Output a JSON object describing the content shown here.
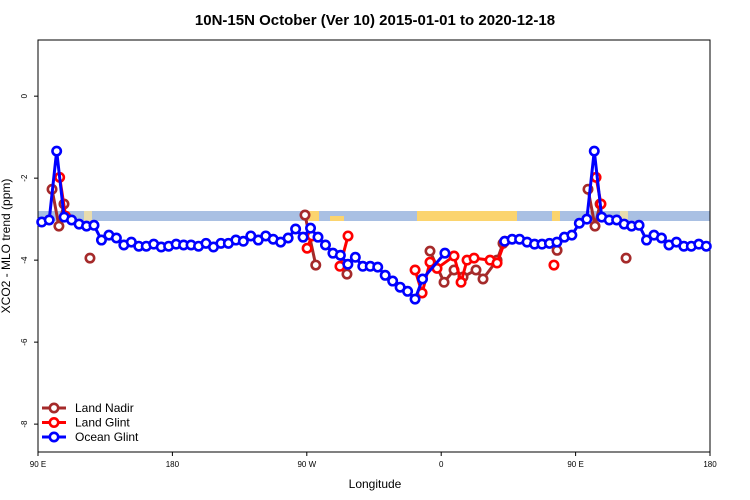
{
  "chart_data": {
    "type": "line",
    "title": "10N-15N October (Ver 10)   2015-01-01 to 2020-12-18",
    "x_label": "Longitude",
    "y_label": "XCO2 - MLO trend (ppm)",
    "xlim": [
      90,
      540
    ],
    "ylim": [
      -8.68,
      1.37
    ],
    "xticks": [
      {
        "value": 90,
        "label": "90 E"
      },
      180,
      {
        "value": 270,
        "label": "90 W"
      },
      {
        "value": 360,
        "label": "0"
      },
      {
        "value": 450,
        "label": "90 E"
      },
      180.0
    ],
    "yticks": [
      0,
      -2,
      -4,
      -6,
      -8
    ],
    "legend": "bottomleft",
    "series": [
      {
        "name": "Land Nadir",
        "color": "#a52a2a",
        "x": [
          99.4,
          104,
          107.4,
          116,
          124.8,
          200,
          268.8,
          276,
          286,
          296.9,
          320,
          352.5,
          361.9,
          368.6,
          374.6,
          383.3,
          388,
          397.4,
          401.4,
          420,
          437.6,
          448,
          458.3,
          463,
          466.4,
          475,
          483.8
        ],
        "values": [
          -2.27,
          -3.17,
          -2.63,
          null,
          -3.95,
          null,
          -2.9,
          -4.12,
          null,
          -4.34,
          null,
          -3.78,
          -4.54,
          -4.24,
          -4.41,
          -4.24,
          -4.46,
          -4.0,
          -3.59,
          null,
          -3.76,
          null,
          -2.27,
          -3.17,
          -2.63,
          null,
          -3.95
        ]
      },
      {
        "name": "Land Glint",
        "color": "#ff0000",
        "x": [
          104.5,
          108.5,
          200,
          270.2,
          273.5,
          285,
          292.2,
          297.6,
          320,
          342.5,
          347.2,
          352.5,
          357.2,
          368.6,
          373.3,
          377.3,
          382,
          392.7,
          397.4,
          402.7,
          420,
          435.5,
          450,
          463.7,
          467
        ],
        "values": [
          -1.98,
          -2.93,
          null,
          -3.71,
          -3.41,
          null,
          -4.15,
          -3.41,
          null,
          -4.24,
          -4.8,
          -4.05,
          -4.2,
          -3.9,
          -4.54,
          -4.0,
          -3.95,
          -4.0,
          -4.07,
          -3.54,
          null,
          -4.12,
          null,
          -1.98,
          -2.63
        ]
      },
      {
        "name": "Ocean Glint",
        "color": "#0000ff",
        "x": [
          92.5,
          97.5,
          102.5,
          107.5,
          112.5,
          117.5,
          122.5,
          127.5,
          132.5,
          137.5,
          142.5,
          147.5,
          152.5,
          157.5,
          162.5,
          167.5,
          172.5,
          177.5,
          182.5,
          187.5,
          192.5,
          197.5,
          202.5,
          207.5,
          212.5,
          217.5,
          222.5,
          227.5,
          232.5,
          237.5,
          242.5,
          247.5,
          252.5,
          257.5,
          262.5,
          267.5,
          272.5,
          277.5,
          282.5,
          287.5,
          292.5,
          297.5,
          302.5,
          307.5,
          312.5,
          317.5,
          322.5,
          327.5,
          332.5,
          337.5,
          342.5,
          347.5,
          362.5,
          382.5,
          402.5,
          407.5,
          412.5,
          417.5,
          422.5,
          427.5,
          432.5,
          437.5,
          442.5,
          447.5,
          452.5,
          457.5,
          462.5,
          467.5,
          472.5,
          477.5,
          482.5,
          487.5,
          492.5,
          497.5,
          502.5,
          507.5,
          512.5,
          517.5,
          522.5,
          527.5,
          532.5,
          537.5
        ],
        "values": [
          -3.07,
          -3.02,
          -1.34,
          -2.95,
          -3.02,
          -3.12,
          -3.17,
          -3.15,
          -3.51,
          -3.39,
          -3.46,
          -3.63,
          -3.56,
          -3.66,
          -3.66,
          -3.61,
          -3.68,
          -3.66,
          -3.61,
          -3.63,
          -3.63,
          -3.66,
          -3.59,
          -3.68,
          -3.59,
          -3.59,
          -3.51,
          -3.54,
          -3.41,
          -3.51,
          -3.41,
          -3.49,
          -3.56,
          -3.46,
          -3.24,
          -3.44,
          -3.22,
          -3.44,
          -3.63,
          -3.83,
          -3.88,
          -4.1,
          -3.93,
          -4.15,
          -4.15,
          -4.17,
          -4.37,
          -4.51,
          -4.66,
          -4.76,
          -4.95,
          -4.46,
          -3.83,
          null,
          -3.54,
          -3.49,
          -3.49,
          -3.56,
          -3.61,
          -3.61,
          -3.59,
          -3.56,
          -3.44,
          -3.39,
          -3.1,
          -3.0,
          -1.34,
          -2.95,
          -3.02,
          -3.02,
          -3.12,
          -3.17,
          -3.15,
          -3.51,
          -3.39,
          -3.46,
          -3.63,
          -3.56,
          -3.66,
          -3.66,
          -3.61,
          -3.66
        ]
      }
    ]
  }
}
